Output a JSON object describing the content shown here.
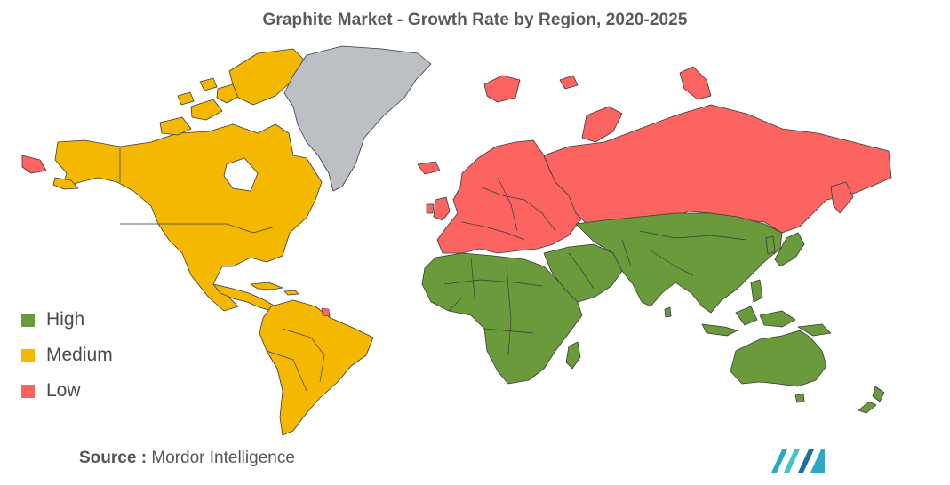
{
  "title": "Graphite Market - Growth Rate by Region, 2020-2025",
  "legend": [
    {
      "label": "High",
      "color": "#6a9a3c"
    },
    {
      "label": "Medium",
      "color": "#f5b800"
    },
    {
      "label": "Low",
      "color": "#fb6461"
    }
  ],
  "no_data_color": "#bcc0c4",
  "source": {
    "prefix": "Source :",
    "text": "Mordor Intelligence"
  },
  "logo": {
    "icon": "mordor-intelligence-logo-icon",
    "colors": [
      "#2ba8c8",
      "#3ec6c7",
      "#1c6f9e"
    ]
  },
  "regions": [
    {
      "name": "North America",
      "category": "Medium"
    },
    {
      "name": "South America",
      "category": "Medium"
    },
    {
      "name": "Greenland",
      "category": "No data"
    },
    {
      "name": "Europe",
      "category": "Low"
    },
    {
      "name": "Russia",
      "category": "Low"
    },
    {
      "name": "Africa",
      "category": "High"
    },
    {
      "name": "Middle East",
      "category": "High"
    },
    {
      "name": "Asia",
      "category": "High"
    },
    {
      "name": "Australia",
      "category": "High"
    },
    {
      "name": "New Zealand",
      "category": "High"
    }
  ]
}
